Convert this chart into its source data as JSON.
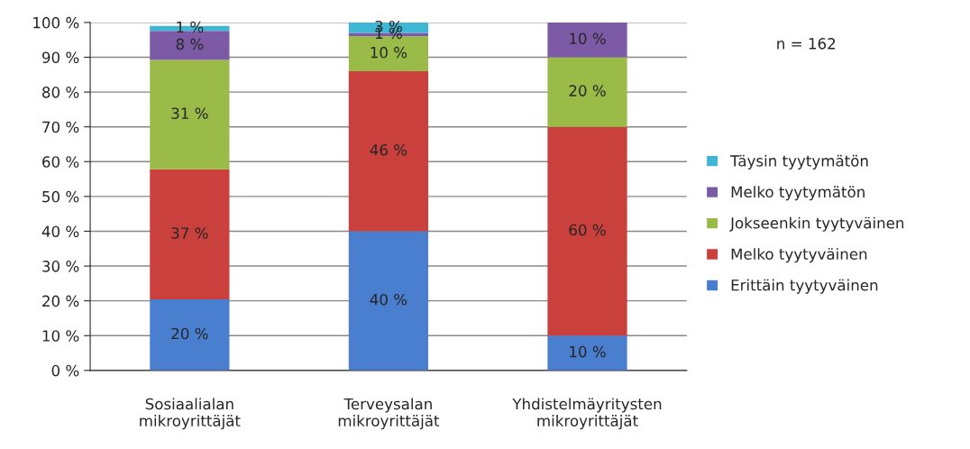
{
  "chart_data": {
    "type": "bar",
    "stacked": true,
    "categories": [
      "Sosiaalialan\nmikroyrittäjät",
      "Terveysalan\nmikroyrittäjät",
      "Yhdistelmäyritysten\nmikroyrittäjät"
    ],
    "series": [
      {
        "name": "Erittäin tyytyväinen",
        "color": "#4a7fd0",
        "values": [
          20.4,
          40,
          10
        ],
        "value_labels": [
          "20 %",
          "40 %",
          "10 %"
        ]
      },
      {
        "name": "Melko tyytyväinen",
        "color": "#c9403c",
        "values": [
          37.4,
          46,
          60
        ],
        "value_labels": [
          "37 %",
          "46 %",
          "60 %"
        ]
      },
      {
        "name": "Jokseenkin tyytyväinen",
        "color": "#9bbb48",
        "values": [
          31.4,
          10,
          20
        ],
        "value_labels": [
          "31 %",
          "10 %",
          "20 %"
        ]
      },
      {
        "name": "Melko tyytymätön",
        "color": "#7d5aa6",
        "values": [
          8.4,
          1,
          10
        ],
        "value_labels": [
          "8 %",
          "1 %",
          "10 %"
        ]
      },
      {
        "name": "Täysin tyytymätön",
        "color": "#3fb6d4",
        "values": [
          1.4,
          3,
          0
        ],
        "value_labels": [
          "1 %",
          "3 %",
          null
        ]
      }
    ],
    "ylim": [
      0,
      100
    ],
    "yticks": [
      {
        "value": 0,
        "label": "0 %"
      },
      {
        "value": 10,
        "label": "10 %"
      },
      {
        "value": 20,
        "label": "20 %"
      },
      {
        "value": 30,
        "label": "30 %"
      },
      {
        "value": 40,
        "label": "40 %"
      },
      {
        "value": 50,
        "label": "50 %"
      },
      {
        "value": 60,
        "label": "60 %"
      },
      {
        "value": 70,
        "label": "70 %"
      },
      {
        "value": 80,
        "label": "80 %"
      },
      {
        "value": 90,
        "label": "90 %"
      },
      {
        "value": 100,
        "label": "100 %"
      }
    ],
    "grid": "y",
    "legend": "right",
    "annotations": [
      "n = 162"
    ]
  }
}
